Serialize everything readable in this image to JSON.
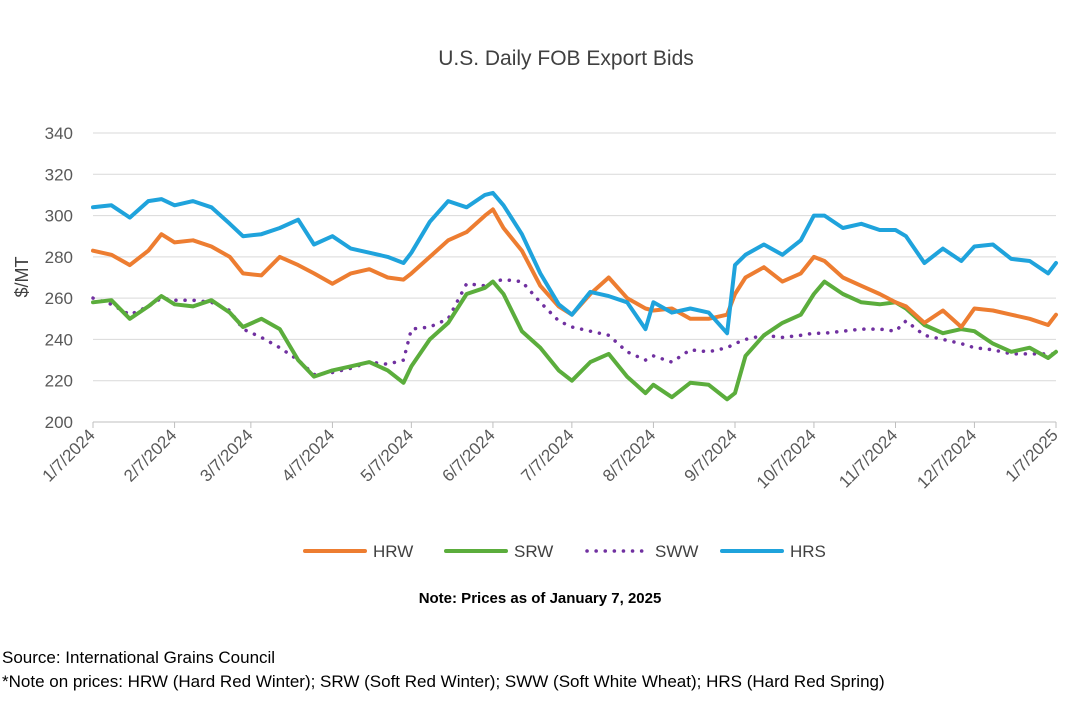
{
  "chart_data": {
    "type": "line",
    "title": "U.S. Daily FOB Export Bids",
    "xlabel": "",
    "ylabel": "$/MT",
    "ylim": [
      200,
      340
    ],
    "yticks": [
      200,
      220,
      240,
      260,
      280,
      300,
      320,
      340
    ],
    "xlim": [
      "2024-01-07",
      "2025-01-07"
    ],
    "categories": [
      "1/7/2024",
      "2/7/2024",
      "3/7/2024",
      "4/7/2024",
      "5/7/2024",
      "6/7/2024",
      "7/7/2024",
      "8/7/2024",
      "9/7/2024",
      "10/7/2024",
      "11/7/2024",
      "12/7/2024",
      "1/7/2025"
    ],
    "grid": true,
    "legend": "bottom",
    "series": [
      {
        "name": "HRW",
        "color": "#ED7D31",
        "dash": "solid",
        "points": [
          [
            "2024-01-07",
            283
          ],
          [
            "2024-01-14",
            281
          ],
          [
            "2024-01-21",
            276
          ],
          [
            "2024-01-28",
            283
          ],
          [
            "2024-02-02",
            291
          ],
          [
            "2024-02-07",
            287
          ],
          [
            "2024-02-14",
            288
          ],
          [
            "2024-02-21",
            285
          ],
          [
            "2024-02-28",
            280
          ],
          [
            "2024-03-04",
            272
          ],
          [
            "2024-03-11",
            271
          ],
          [
            "2024-03-18",
            280
          ],
          [
            "2024-03-25",
            276
          ],
          [
            "2024-03-31",
            272
          ],
          [
            "2024-04-07",
            267
          ],
          [
            "2024-04-14",
            272
          ],
          [
            "2024-04-21",
            274
          ],
          [
            "2024-04-28",
            270
          ],
          [
            "2024-05-04",
            269
          ],
          [
            "2024-05-07",
            272
          ],
          [
            "2024-05-14",
            280
          ],
          [
            "2024-05-21",
            288
          ],
          [
            "2024-05-28",
            292
          ],
          [
            "2024-06-04",
            300
          ],
          [
            "2024-06-07",
            303
          ],
          [
            "2024-06-11",
            294
          ],
          [
            "2024-06-18",
            283
          ],
          [
            "2024-06-25",
            266
          ],
          [
            "2024-07-02",
            256
          ],
          [
            "2024-07-07",
            252
          ],
          [
            "2024-07-14",
            262
          ],
          [
            "2024-07-21",
            270
          ],
          [
            "2024-07-28",
            260
          ],
          [
            "2024-08-04",
            255
          ],
          [
            "2024-08-07",
            254
          ],
          [
            "2024-08-14",
            255
          ],
          [
            "2024-08-21",
            250
          ],
          [
            "2024-08-28",
            250
          ],
          [
            "2024-09-04",
            252
          ],
          [
            "2024-09-07",
            262
          ],
          [
            "2024-09-11",
            270
          ],
          [
            "2024-09-18",
            275
          ],
          [
            "2024-09-25",
            268
          ],
          [
            "2024-10-02",
            272
          ],
          [
            "2024-10-07",
            280
          ],
          [
            "2024-10-11",
            278
          ],
          [
            "2024-10-18",
            270
          ],
          [
            "2024-10-25",
            266
          ],
          [
            "2024-11-01",
            262
          ],
          [
            "2024-11-07",
            258
          ],
          [
            "2024-11-11",
            256
          ],
          [
            "2024-11-18",
            248
          ],
          [
            "2024-11-25",
            254
          ],
          [
            "2024-12-02",
            246
          ],
          [
            "2024-12-07",
            255
          ],
          [
            "2024-12-14",
            254
          ],
          [
            "2024-12-21",
            252
          ],
          [
            "2024-12-28",
            250
          ],
          [
            "2025-01-04",
            247
          ],
          [
            "2025-01-07",
            252
          ]
        ]
      },
      {
        "name": "SRW",
        "color": "#5BAD3C",
        "dash": "solid",
        "points": [
          [
            "2024-01-07",
            258
          ],
          [
            "2024-01-14",
            259
          ],
          [
            "2024-01-21",
            250
          ],
          [
            "2024-01-28",
            256
          ],
          [
            "2024-02-02",
            261
          ],
          [
            "2024-02-07",
            257
          ],
          [
            "2024-02-14",
            256
          ],
          [
            "2024-02-21",
            259
          ],
          [
            "2024-02-28",
            253
          ],
          [
            "2024-03-04",
            246
          ],
          [
            "2024-03-11",
            250
          ],
          [
            "2024-03-18",
            245
          ],
          [
            "2024-03-25",
            230
          ],
          [
            "2024-03-31",
            222
          ],
          [
            "2024-04-07",
            225
          ],
          [
            "2024-04-14",
            227
          ],
          [
            "2024-04-21",
            229
          ],
          [
            "2024-04-28",
            225
          ],
          [
            "2024-05-04",
            219
          ],
          [
            "2024-05-07",
            227
          ],
          [
            "2024-05-14",
            240
          ],
          [
            "2024-05-21",
            248
          ],
          [
            "2024-05-28",
            262
          ],
          [
            "2024-06-04",
            265
          ],
          [
            "2024-06-07",
            268
          ],
          [
            "2024-06-11",
            262
          ],
          [
            "2024-06-18",
            244
          ],
          [
            "2024-06-25",
            236
          ],
          [
            "2024-07-02",
            225
          ],
          [
            "2024-07-07",
            220
          ],
          [
            "2024-07-14",
            229
          ],
          [
            "2024-07-21",
            233
          ],
          [
            "2024-07-28",
            222
          ],
          [
            "2024-08-04",
            214
          ],
          [
            "2024-08-07",
            218
          ],
          [
            "2024-08-14",
            212
          ],
          [
            "2024-08-21",
            219
          ],
          [
            "2024-08-28",
            218
          ],
          [
            "2024-09-04",
            211
          ],
          [
            "2024-09-07",
            214
          ],
          [
            "2024-09-11",
            232
          ],
          [
            "2024-09-18",
            242
          ],
          [
            "2024-09-25",
            248
          ],
          [
            "2024-10-02",
            252
          ],
          [
            "2024-10-07",
            262
          ],
          [
            "2024-10-11",
            268
          ],
          [
            "2024-10-18",
            262
          ],
          [
            "2024-10-25",
            258
          ],
          [
            "2024-11-01",
            257
          ],
          [
            "2024-11-07",
            258
          ],
          [
            "2024-11-11",
            255
          ],
          [
            "2024-11-18",
            247
          ],
          [
            "2024-11-25",
            243
          ],
          [
            "2024-12-02",
            245
          ],
          [
            "2024-12-07",
            244
          ],
          [
            "2024-12-14",
            238
          ],
          [
            "2024-12-21",
            234
          ],
          [
            "2024-12-28",
            236
          ],
          [
            "2025-01-04",
            231
          ],
          [
            "2025-01-07",
            234
          ]
        ]
      },
      {
        "name": "SWW",
        "color": "#7030A0",
        "dash": "dotted",
        "points": [
          [
            "2024-01-07",
            260
          ],
          [
            "2024-01-14",
            257
          ],
          [
            "2024-01-21",
            252
          ],
          [
            "2024-01-28",
            256
          ],
          [
            "2024-02-02",
            260
          ],
          [
            "2024-02-07",
            259
          ],
          [
            "2024-02-14",
            259
          ],
          [
            "2024-02-21",
            258
          ],
          [
            "2024-02-28",
            254
          ],
          [
            "2024-03-04",
            245
          ],
          [
            "2024-03-11",
            241
          ],
          [
            "2024-03-18",
            236
          ],
          [
            "2024-03-25",
            230
          ],
          [
            "2024-03-31",
            223
          ],
          [
            "2024-04-07",
            224
          ],
          [
            "2024-04-14",
            226
          ],
          [
            "2024-04-21",
            229
          ],
          [
            "2024-04-28",
            228
          ],
          [
            "2024-05-04",
            230
          ],
          [
            "2024-05-07",
            245
          ],
          [
            "2024-05-14",
            246
          ],
          [
            "2024-05-21",
            250
          ],
          [
            "2024-05-28",
            267
          ],
          [
            "2024-06-04",
            266
          ],
          [
            "2024-06-07",
            268
          ],
          [
            "2024-06-11",
            269
          ],
          [
            "2024-06-18",
            268
          ],
          [
            "2024-06-25",
            258
          ],
          [
            "2024-07-02",
            249
          ],
          [
            "2024-07-07",
            246
          ],
          [
            "2024-07-14",
            244
          ],
          [
            "2024-07-21",
            242
          ],
          [
            "2024-07-28",
            234
          ],
          [
            "2024-08-04",
            230
          ],
          [
            "2024-08-07",
            232
          ],
          [
            "2024-08-14",
            229
          ],
          [
            "2024-08-21",
            235
          ],
          [
            "2024-08-28",
            234
          ],
          [
            "2024-09-04",
            236
          ],
          [
            "2024-09-07",
            238
          ],
          [
            "2024-09-11",
            240
          ],
          [
            "2024-09-18",
            242
          ],
          [
            "2024-09-25",
            241
          ],
          [
            "2024-10-02",
            242
          ],
          [
            "2024-10-07",
            243
          ],
          [
            "2024-10-11",
            243
          ],
          [
            "2024-10-18",
            244
          ],
          [
            "2024-10-25",
            245
          ],
          [
            "2024-11-01",
            245
          ],
          [
            "2024-11-07",
            244
          ],
          [
            "2024-11-11",
            249
          ],
          [
            "2024-11-18",
            242
          ],
          [
            "2024-11-25",
            240
          ],
          [
            "2024-12-02",
            238
          ],
          [
            "2024-12-07",
            236
          ],
          [
            "2024-12-14",
            235
          ],
          [
            "2024-12-21",
            233
          ],
          [
            "2024-12-28",
            233
          ],
          [
            "2025-01-04",
            233
          ],
          [
            "2025-01-07",
            233
          ]
        ]
      },
      {
        "name": "HRS",
        "color": "#1FA3DC",
        "dash": "solid",
        "points": [
          [
            "2024-01-07",
            304
          ],
          [
            "2024-01-14",
            305
          ],
          [
            "2024-01-21",
            299
          ],
          [
            "2024-01-28",
            307
          ],
          [
            "2024-02-02",
            308
          ],
          [
            "2024-02-07",
            305
          ],
          [
            "2024-02-14",
            307
          ],
          [
            "2024-02-21",
            304
          ],
          [
            "2024-02-28",
            296
          ],
          [
            "2024-03-04",
            290
          ],
          [
            "2024-03-11",
            291
          ],
          [
            "2024-03-18",
            294
          ],
          [
            "2024-03-25",
            298
          ],
          [
            "2024-03-31",
            286
          ],
          [
            "2024-04-07",
            290
          ],
          [
            "2024-04-14",
            284
          ],
          [
            "2024-04-21",
            282
          ],
          [
            "2024-04-28",
            280
          ],
          [
            "2024-05-04",
            277
          ],
          [
            "2024-05-07",
            282
          ],
          [
            "2024-05-14",
            297
          ],
          [
            "2024-05-21",
            307
          ],
          [
            "2024-05-28",
            304
          ],
          [
            "2024-06-04",
            310
          ],
          [
            "2024-06-07",
            311
          ],
          [
            "2024-06-11",
            305
          ],
          [
            "2024-06-18",
            291
          ],
          [
            "2024-06-25",
            272
          ],
          [
            "2024-07-02",
            257
          ],
          [
            "2024-07-07",
            252
          ],
          [
            "2024-07-14",
            263
          ],
          [
            "2024-07-21",
            261
          ],
          [
            "2024-07-28",
            258
          ],
          [
            "2024-08-04",
            245
          ],
          [
            "2024-08-07",
            258
          ],
          [
            "2024-08-14",
            253
          ],
          [
            "2024-08-21",
            255
          ],
          [
            "2024-08-28",
            253
          ],
          [
            "2024-09-04",
            243
          ],
          [
            "2024-09-07",
            276
          ],
          [
            "2024-09-11",
            281
          ],
          [
            "2024-09-18",
            286
          ],
          [
            "2024-09-25",
            281
          ],
          [
            "2024-10-02",
            288
          ],
          [
            "2024-10-07",
            300
          ],
          [
            "2024-10-11",
            300
          ],
          [
            "2024-10-18",
            294
          ],
          [
            "2024-10-25",
            296
          ],
          [
            "2024-11-01",
            293
          ],
          [
            "2024-11-07",
            293
          ],
          [
            "2024-11-11",
            290
          ],
          [
            "2024-11-18",
            277
          ],
          [
            "2024-11-25",
            284
          ],
          [
            "2024-12-02",
            278
          ],
          [
            "2024-12-07",
            285
          ],
          [
            "2024-12-14",
            286
          ],
          [
            "2024-12-21",
            279
          ],
          [
            "2024-12-28",
            278
          ],
          [
            "2025-01-04",
            272
          ],
          [
            "2025-01-07",
            277
          ]
        ]
      }
    ]
  },
  "note": "Note: Prices as of January 7, 2025",
  "source": {
    "line1": "Source: International Grains Council",
    "line2": "*Note on prices: HRW (Hard Red Winter); SRW (Soft Red Winter); SWW (Soft White Wheat); HRS (Hard Red Spring)"
  }
}
